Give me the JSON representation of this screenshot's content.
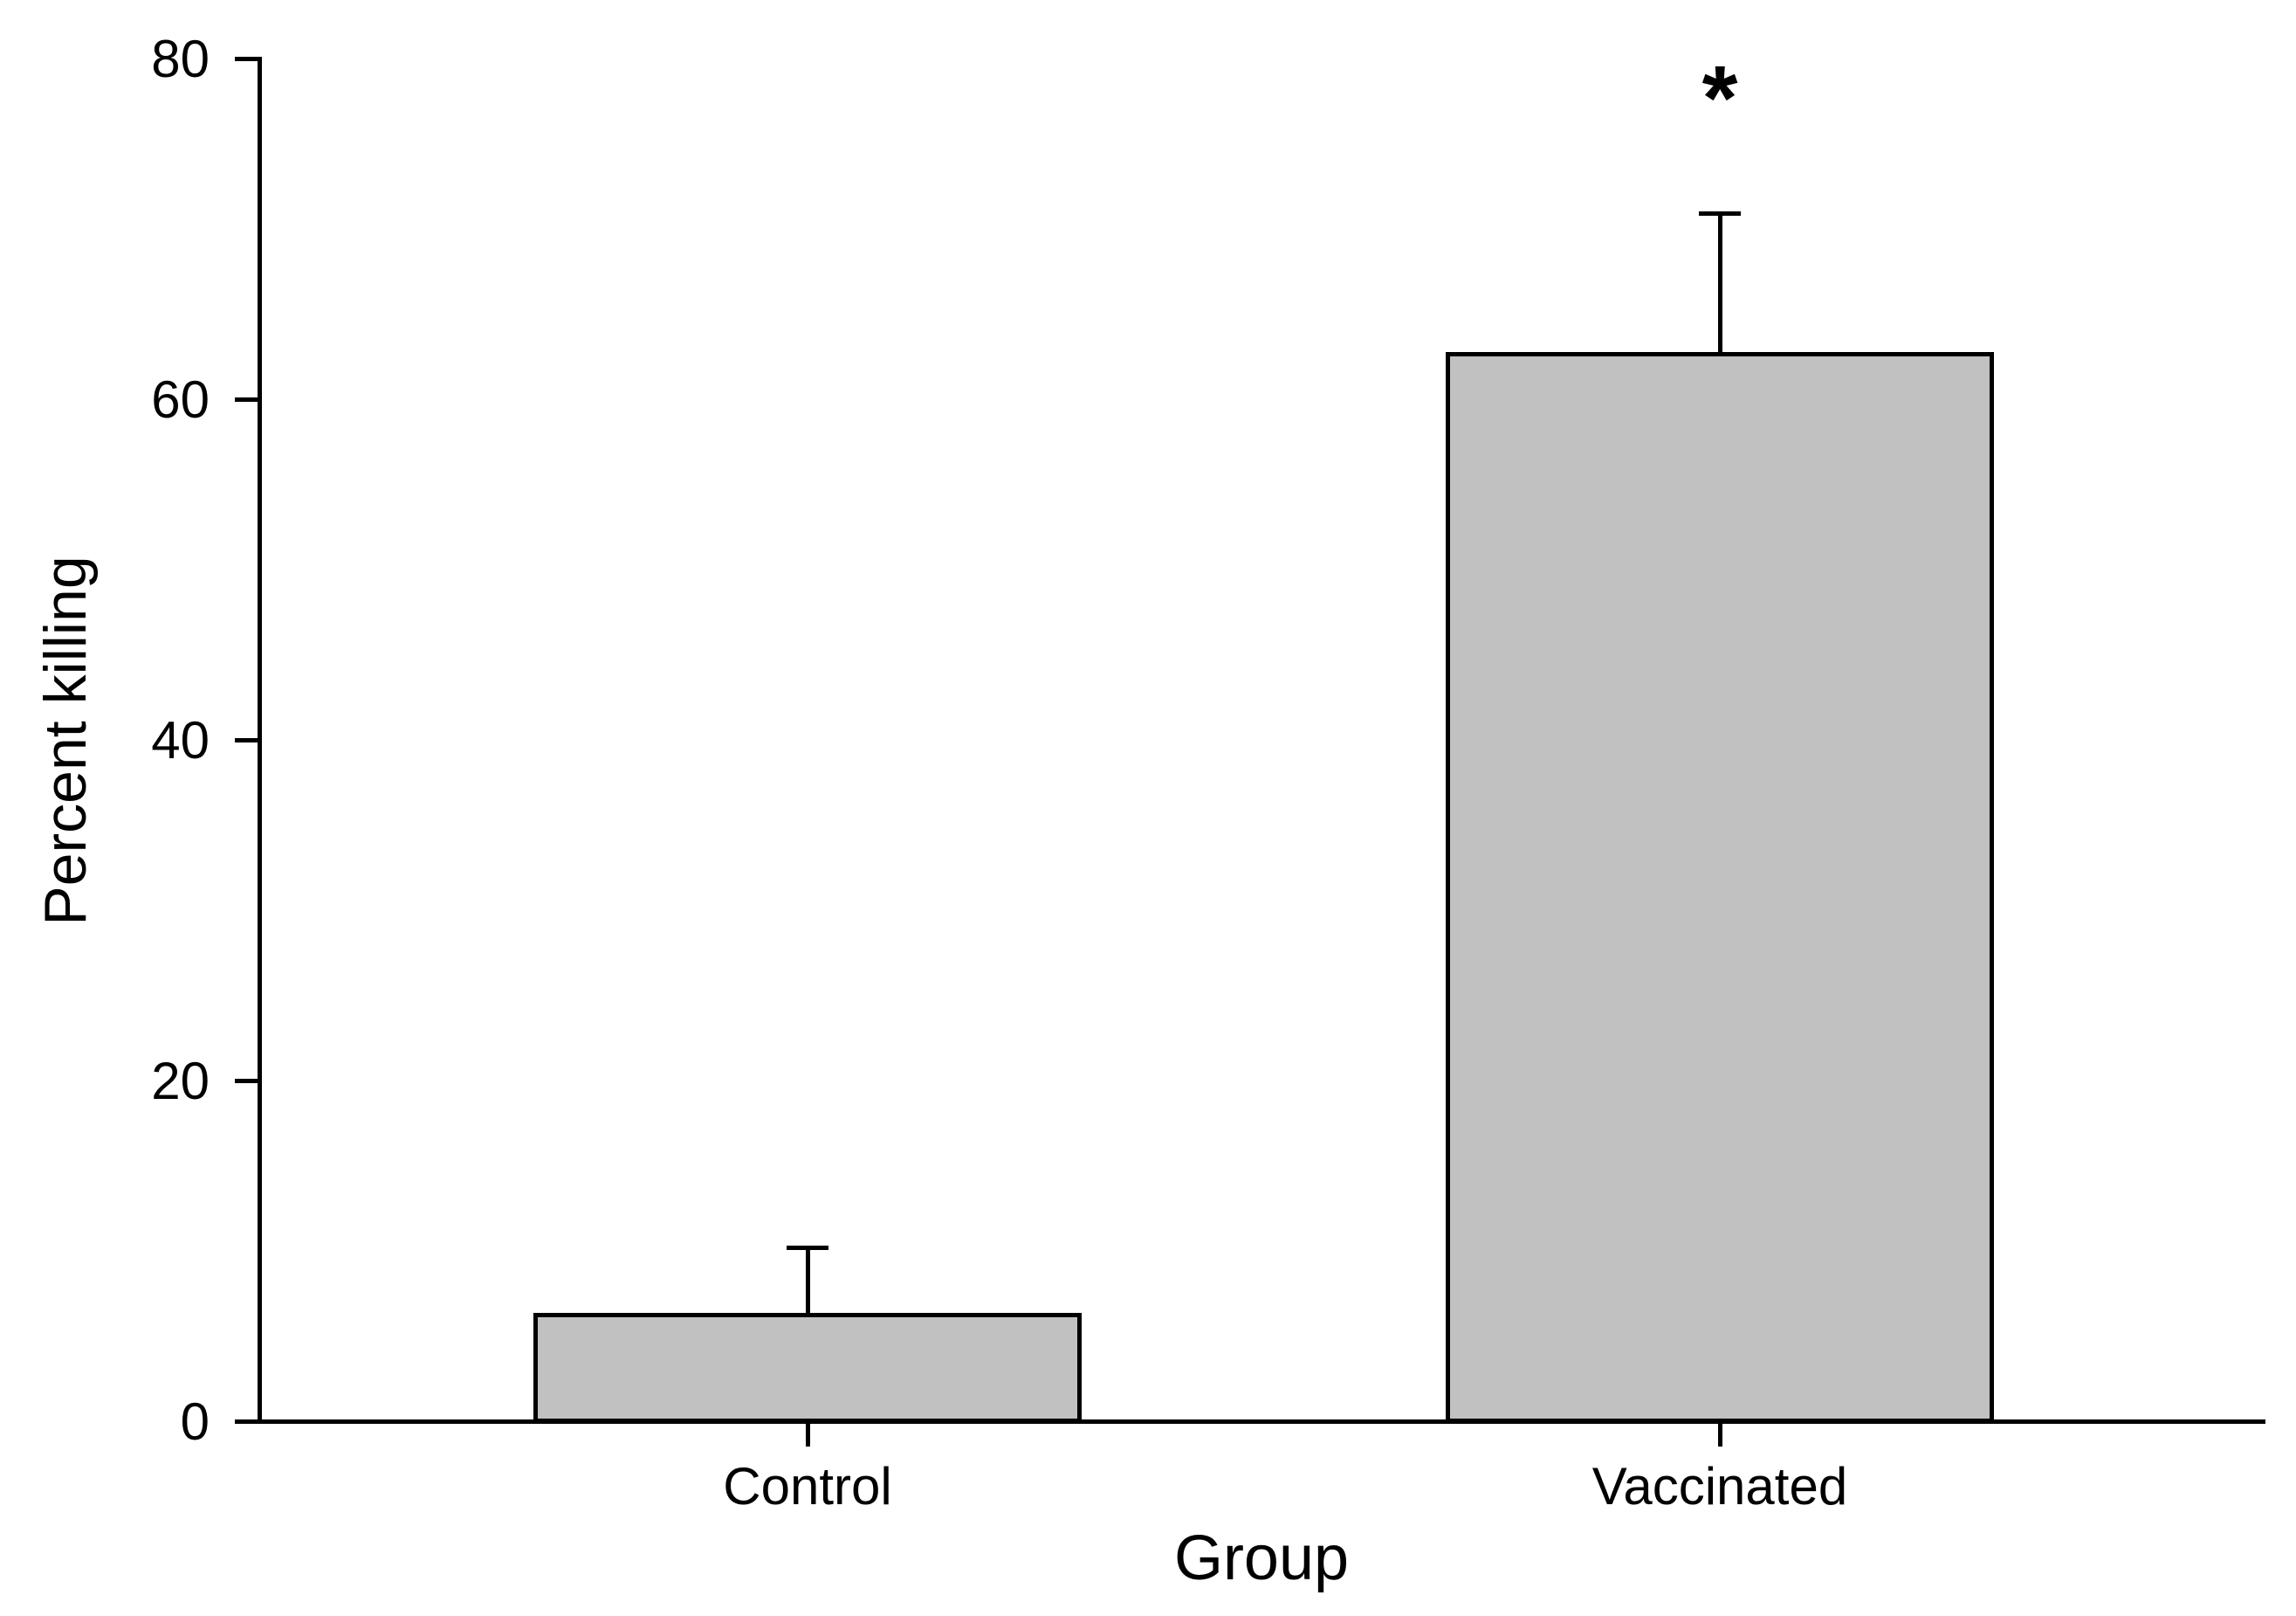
{
  "chart_data": {
    "type": "bar",
    "title": "",
    "xlabel": "Group",
    "ylabel": "Percent killing",
    "categories": [
      "Control",
      "Vaccinated"
    ],
    "values": [
      6.4,
      62.8
    ],
    "error_upper": [
      3.8,
      8.1
    ],
    "yticks": [
      0,
      20,
      40,
      60,
      80
    ],
    "ylim": [
      0,
      80
    ],
    "grid": false,
    "legend_position": "none",
    "bar_fill_color": "#c1c1c1",
    "bar_border_color": "#000000",
    "axis_color": "#000000",
    "annotations": [
      {
        "category_index": 1,
        "text": "*",
        "meaning": "significance-marker"
      }
    ]
  }
}
